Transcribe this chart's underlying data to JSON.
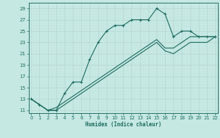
{
  "xlabel": "Humidex (Indice chaleur)",
  "xlim": [
    -0.3,
    22.3
  ],
  "ylim": [
    10.5,
    30.0
  ],
  "xticks": [
    0,
    1,
    2,
    3,
    4,
    5,
    6,
    7,
    8,
    9,
    10,
    11,
    12,
    13,
    14,
    15,
    16,
    17,
    18,
    19,
    20,
    21,
    22
  ],
  "yticks": [
    11,
    13,
    15,
    17,
    19,
    21,
    23,
    25,
    27,
    29
  ],
  "bg_color": "#c5e8e3",
  "grid_color": "#b8d8d3",
  "line_color": "#1e6b5e",
  "line1_x": [
    0,
    1,
    2,
    3,
    4,
    5,
    6,
    7,
    8,
    9,
    10,
    11,
    12,
    13,
    14,
    15,
    16,
    17,
    18,
    19,
    20,
    21,
    22
  ],
  "line1_y": [
    13,
    12,
    11,
    11,
    14,
    16,
    16,
    20,
    23,
    25,
    26,
    26,
    27,
    27,
    27,
    29,
    28,
    24,
    25,
    25,
    24,
    24,
    24
  ],
  "line2_x": [
    0,
    1,
    2,
    3,
    4,
    5,
    6,
    7,
    8,
    9,
    10,
    11,
    12,
    13,
    14,
    15,
    16,
    17,
    18,
    19,
    20,
    21,
    22
  ],
  "line2_y": [
    13,
    12,
    11,
    11.5,
    12.5,
    13.5,
    14.5,
    15.5,
    16.5,
    17.5,
    18.5,
    19.5,
    20.5,
    21.5,
    22.5,
    23.5,
    22,
    22,
    23,
    24,
    24,
    24,
    24
  ],
  "line3_x": [
    0,
    1,
    2,
    3,
    4,
    5,
    6,
    7,
    8,
    9,
    10,
    11,
    12,
    13,
    14,
    15,
    16,
    17,
    18,
    19,
    20,
    21,
    22
  ],
  "line3_y": [
    13,
    12,
    11,
    11,
    12,
    13,
    14,
    15,
    16,
    17,
    18,
    19,
    20,
    21,
    22,
    23,
    21.5,
    21,
    22,
    23,
    23,
    23,
    24
  ]
}
